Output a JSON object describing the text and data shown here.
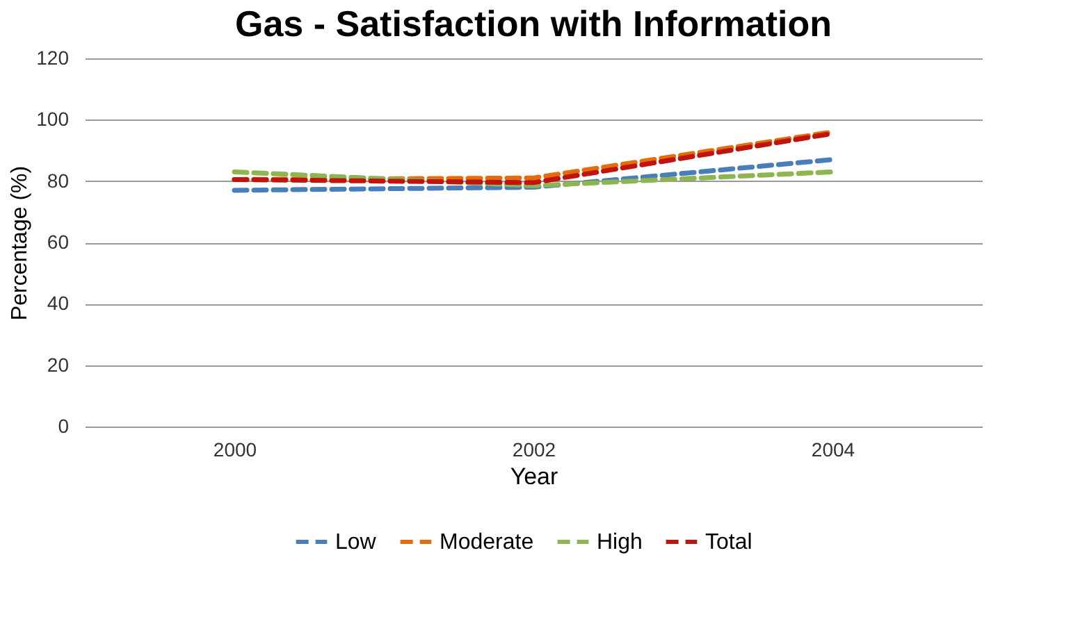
{
  "chart_data": {
    "type": "line",
    "title": "Gas - Satisfaction with Information",
    "xlabel": "Year",
    "ylabel": "Percentage (%)",
    "categories": [
      "2000",
      "2002",
      "2004"
    ],
    "series": [
      {
        "name": "Low",
        "color": "#4a7ebb",
        "values": [
          77,
          78,
          87
        ],
        "line_style": "dashed"
      },
      {
        "name": "Moderate",
        "color": "#e46c0a",
        "values": [
          80.5,
          81,
          96
        ],
        "line_style": "dashed"
      },
      {
        "name": "High",
        "color": "#8db551",
        "values": [
          83,
          78.5,
          83
        ],
        "line_style": "dashed"
      },
      {
        "name": "Total",
        "color": "#c0140f",
        "values": [
          80.5,
          79.5,
          95.5
        ],
        "line_style": "dashed"
      }
    ],
    "ylim": [
      0,
      120
    ],
    "yticks": [
      0,
      20,
      40,
      60,
      80,
      100,
      120
    ],
    "grid": "y",
    "legend": "bottom",
    "marker": "none"
  }
}
